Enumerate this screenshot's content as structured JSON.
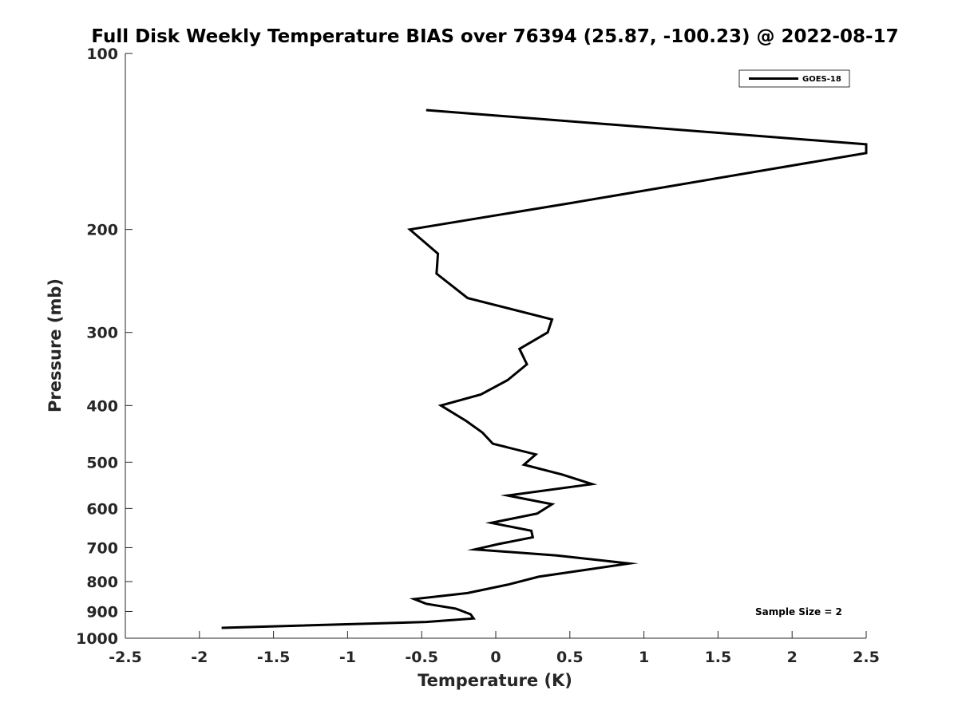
{
  "chart_data": {
    "type": "line",
    "title": "Full Disk Weekly Temperature BIAS over 76394 (25.87, -100.23) @ 2022-08-17",
    "xlabel": "Temperature (K)",
    "ylabel": "Pressure (mb)",
    "xlim": [
      -2.5,
      2.5
    ],
    "ylim": [
      100,
      1000
    ],
    "y_scale": "log",
    "y_reversed": true,
    "grid": false,
    "legend_position": "top-right",
    "x_ticks": [
      -2.5,
      -2,
      -1.5,
      -1,
      -0.5,
      0,
      0.5,
      1,
      1.5,
      2,
      2.5
    ],
    "x_tick_labels": [
      "-2.5",
      "-2",
      "-1.5",
      "-1",
      "-0.5",
      "0",
      "0.5",
      "1",
      "1.5",
      "2",
      "2.5"
    ],
    "y_ticks": [
      100,
      200,
      300,
      400,
      500,
      600,
      700,
      800,
      900,
      1000
    ],
    "y_tick_labels": [
      "100",
      "200",
      "300",
      "400",
      "500",
      "600",
      "700",
      "800",
      "900",
      "1000"
    ],
    "series": [
      {
        "name": "GOES-18",
        "color": "#000000",
        "points": [
          {
            "x": -0.47,
            "y": 125
          },
          {
            "x": 2.5,
            "y": 143
          },
          {
            "x": 2.5,
            "y": 148
          },
          {
            "x": 0.52,
            "y": 180
          },
          {
            "x": -0.58,
            "y": 200
          },
          {
            "x": -0.39,
            "y": 220
          },
          {
            "x": -0.4,
            "y": 238
          },
          {
            "x": -0.19,
            "y": 262
          },
          {
            "x": 0.38,
            "y": 285
          },
          {
            "x": 0.35,
            "y": 300
          },
          {
            "x": 0.16,
            "y": 320
          },
          {
            "x": 0.21,
            "y": 340
          },
          {
            "x": 0.08,
            "y": 362
          },
          {
            "x": -0.1,
            "y": 383
          },
          {
            "x": -0.37,
            "y": 400
          },
          {
            "x": -0.2,
            "y": 425
          },
          {
            "x": -0.09,
            "y": 445
          },
          {
            "x": -0.02,
            "y": 465
          },
          {
            "x": 0.27,
            "y": 485
          },
          {
            "x": 0.19,
            "y": 505
          },
          {
            "x": 0.45,
            "y": 525
          },
          {
            "x": 0.65,
            "y": 545
          },
          {
            "x": 0.08,
            "y": 570
          },
          {
            "x": 0.38,
            "y": 590
          },
          {
            "x": 0.28,
            "y": 612
          },
          {
            "x": -0.03,
            "y": 635
          },
          {
            "x": 0.24,
            "y": 655
          },
          {
            "x": 0.25,
            "y": 672
          },
          {
            "x": 0.02,
            "y": 690
          },
          {
            "x": -0.14,
            "y": 705
          },
          {
            "x": 0.41,
            "y": 722
          },
          {
            "x": 0.9,
            "y": 745
          },
          {
            "x": 0.29,
            "y": 785
          },
          {
            "x": 0.08,
            "y": 810
          },
          {
            "x": -0.19,
            "y": 837
          },
          {
            "x": -0.55,
            "y": 857
          },
          {
            "x": -0.47,
            "y": 873
          },
          {
            "x": -0.27,
            "y": 890
          },
          {
            "x": -0.17,
            "y": 910
          },
          {
            "x": -0.15,
            "y": 925
          },
          {
            "x": -0.47,
            "y": 938
          },
          {
            "x": -1.85,
            "y": 960
          }
        ]
      }
    ],
    "annotations": [
      "Sample Size = 2"
    ]
  }
}
